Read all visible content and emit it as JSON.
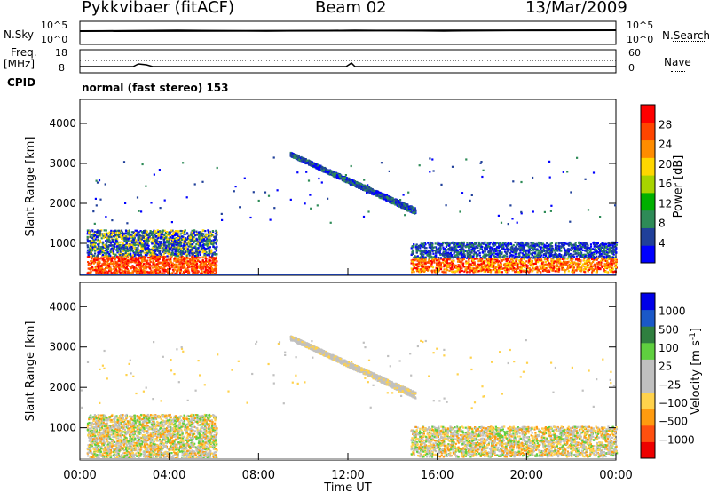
{
  "header": {
    "station": "Pykkvibaer (fitACF)",
    "beam": "Beam 02",
    "date": "13/Mar/2009"
  },
  "summary": {
    "nsky_label": "N.Sky",
    "nsky_ticks": [
      "10^5",
      "10^0"
    ],
    "nsearch_label": "N.Search",
    "nsearch_ticks": [
      "10^5",
      "10^0"
    ],
    "freq_label_1": "Freq.",
    "freq_label_2": "[MHz]",
    "freq_ticks": [
      "18",
      "8"
    ],
    "nave_label": "Nave",
    "nave_ticks": [
      "60",
      "0"
    ],
    "cpid_label": "CPID",
    "cpid_text": "normal (fast stereo) 153"
  },
  "colors": {
    "power_scale": [
      "#0000ff",
      "#20409a",
      "#2e8b57",
      "#00b000",
      "#a8d400",
      "#ffd700",
      "#ff8c00",
      "#ff4500",
      "#ff0000"
    ],
    "velocity_scale": [
      "#0000e8",
      "#1a58c8",
      "#2f7f3f",
      "#5fcf3f",
      "#c0c0c0",
      "#c0c0c0",
      "#ffd24c",
      "#ff9b10",
      "#ff5010",
      "#ee0000"
    ]
  },
  "chart_data": [
    {
      "type": "heatmap",
      "name": "power",
      "ylabel": "Slant Range [km]",
      "yticks": [
        "1000",
        "2000",
        "3000",
        "4000"
      ],
      "ylim": [
        200,
        4600
      ],
      "xlabel": "Time UT",
      "xticks": [
        "00:00",
        "04:00",
        "08:00",
        "12:00",
        "16:00",
        "20:00",
        "00:00"
      ],
      "xlim_hours": [
        0,
        24
      ],
      "colorbar_label": "Power [dB]",
      "colorbar_ticks": [
        "4",
        "8",
        "12",
        "16",
        "20",
        "24",
        "28"
      ],
      "regions": [
        {
          "t": [
            0.3,
            6.1
          ],
          "r": [
            250,
            1350
          ],
          "level": "high",
          "desc": "near-range scatter"
        },
        {
          "t": [
            9.4,
            15.0
          ],
          "r": [
            1650,
            3250
          ],
          "level": "low",
          "desc": "descending band"
        },
        {
          "t": [
            14.8,
            24.0
          ],
          "r": [
            300,
            1050
          ],
          "level": "high",
          "desc": "late near-range scatter"
        }
      ]
    },
    {
      "type": "heatmap",
      "name": "velocity",
      "ylabel": "Slant Range [km]",
      "yticks": [
        "1000",
        "2000",
        "3000",
        "4000"
      ],
      "ylim": [
        200,
        4600
      ],
      "xlabel": "Time UT",
      "xticks": [
        "00:00",
        "04:00",
        "08:00",
        "12:00",
        "16:00",
        "20:00",
        "00:00"
      ],
      "xlim_hours": [
        0,
        24
      ],
      "colorbar_label": "Velocity [m s",
      "colorbar_sup": "-1",
      "colorbar_tail": "]",
      "colorbar_ticks": [
        "1000",
        "500",
        "100",
        "25",
        "−25",
        "−100",
        "−500",
        "−1000"
      ]
    }
  ]
}
